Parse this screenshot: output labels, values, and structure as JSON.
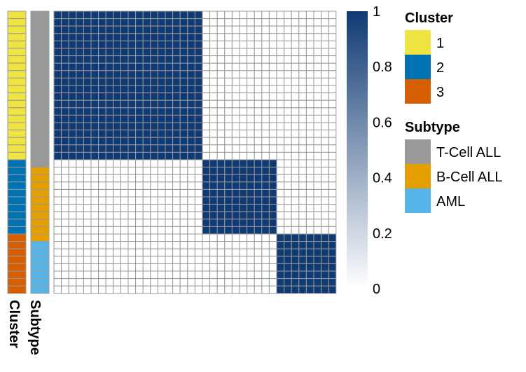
{
  "chart_data": {
    "type": "heatmap",
    "n_samples": 38,
    "cluster_sizes": [
      20,
      10,
      8
    ],
    "matrix_value_within_cluster": 1,
    "matrix_value_between_clusters": 0,
    "annotations": {
      "cluster": [
        1,
        1,
        1,
        1,
        1,
        1,
        1,
        1,
        1,
        1,
        1,
        1,
        1,
        1,
        1,
        1,
        1,
        1,
        1,
        1,
        2,
        2,
        2,
        2,
        2,
        2,
        2,
        2,
        2,
        2,
        3,
        3,
        3,
        3,
        3,
        3,
        3,
        3
      ],
      "subtype": [
        "T-Cell ALL",
        "T-Cell ALL",
        "T-Cell ALL",
        "T-Cell ALL",
        "T-Cell ALL",
        "T-Cell ALL",
        "T-Cell ALL",
        "T-Cell ALL",
        "T-Cell ALL",
        "T-Cell ALL",
        "T-Cell ALL",
        "T-Cell ALL",
        "T-Cell ALL",
        "T-Cell ALL",
        "T-Cell ALL",
        "T-Cell ALL",
        "T-Cell ALL",
        "T-Cell ALL",
        "T-Cell ALL",
        "T-Cell ALL",
        "T-Cell ALL",
        "B-Cell ALL",
        "B-Cell ALL",
        "B-Cell ALL",
        "B-Cell ALL",
        "B-Cell ALL",
        "B-Cell ALL",
        "B-Cell ALL",
        "B-Cell ALL",
        "B-Cell ALL",
        "B-Cell ALL",
        "AML",
        "AML",
        "AML",
        "AML",
        "AML",
        "AML",
        "AML"
      ]
    },
    "track_labels": [
      "Cluster",
      "Subtype"
    ],
    "colorbar": {
      "ticks": [
        "0",
        "0.2",
        "0.4",
        "0.6",
        "0.8",
        "1"
      ],
      "min_color": "#ffffff",
      "max_color": "#0f3a73"
    },
    "legends": [
      {
        "title": "Cluster",
        "items": [
          {
            "label": "1",
            "color": "#f0e442"
          },
          {
            "label": "2",
            "color": "#0072b2"
          },
          {
            "label": "3",
            "color": "#d55e00"
          }
        ]
      },
      {
        "title": "Subtype",
        "items": [
          {
            "label": "T-Cell ALL",
            "color": "#999999"
          },
          {
            "label": "B-Cell ALL",
            "color": "#e69f00"
          },
          {
            "label": "AML",
            "color": "#56b4e9"
          }
        ]
      }
    ],
    "grid_color": "#999999"
  }
}
